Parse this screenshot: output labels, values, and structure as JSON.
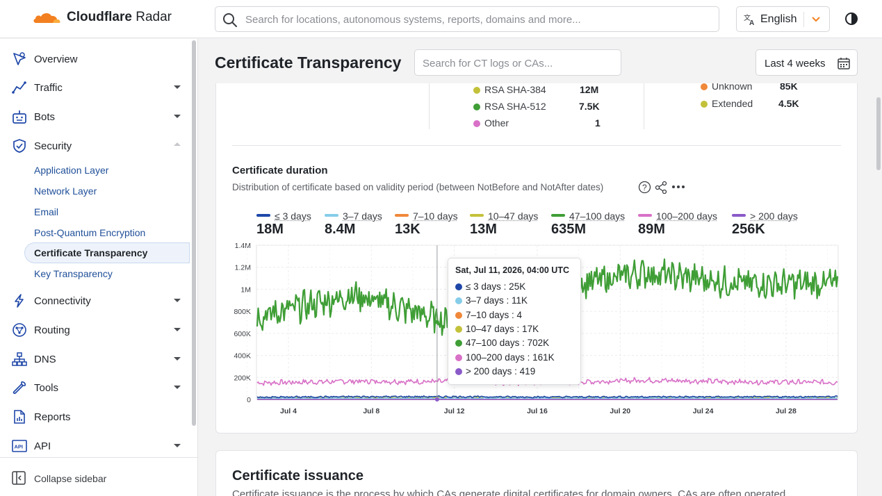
{
  "header": {
    "logo_bold": "Cloudflare",
    "logo_light": "Radar",
    "search_placeholder": "Search for locations, autonomous systems, reports, domains and more...",
    "language": "English"
  },
  "sidebar": {
    "items": [
      {
        "label": "Overview",
        "icon": "overview-icon"
      },
      {
        "label": "Traffic",
        "icon": "traffic-icon"
      },
      {
        "label": "Bots",
        "icon": "bot-icon"
      },
      {
        "label": "Security",
        "icon": "shield-icon"
      },
      {
        "label": "Connectivity",
        "icon": "lightning-icon"
      },
      {
        "label": "Routing",
        "icon": "routing-icon"
      },
      {
        "label": "DNS",
        "icon": "dns-icon"
      },
      {
        "label": "Tools",
        "icon": "wrench-icon"
      },
      {
        "label": "Reports",
        "icon": "report-icon"
      },
      {
        "label": "API",
        "icon": "api-icon"
      }
    ],
    "security_sub": [
      "Application Layer",
      "Network Layer",
      "Email",
      "Post-Quantum Encryption",
      "Certificate Transparency",
      "Key Transparency"
    ],
    "active_sub": "Certificate Transparency",
    "collapse_label": "Collapse sidebar"
  },
  "main": {
    "page_title": "Certificate Transparency",
    "ct_search_placeholder": "Search for CT logs or CAs...",
    "date_range": "Last 4 weeks",
    "signature_legend": [
      {
        "name": "RSA SHA-384",
        "value": "12M",
        "color": "#c3c13a"
      },
      {
        "name": "RSA SHA-512",
        "value": "7.5K",
        "color": "#3f9e36"
      },
      {
        "name": "Other",
        "value": "1",
        "color": "#d871c7"
      }
    ],
    "validation_legend": [
      {
        "name": "Unknown",
        "value": "85K",
        "color": "#f0883a"
      },
      {
        "name": "Extended",
        "value": "4.5K",
        "color": "#c3c13a"
      }
    ],
    "duration_title": "Certificate duration",
    "duration_desc": "Distribution of certificate based on validity period (between NotBefore and NotAfter dates)",
    "issuance_title": "Certificate issuance",
    "issuance_desc": "Certificate issuance is the process by which CAs generate digital certificates for domain owners. CAs are often operated"
  },
  "chart_data": {
    "type": "line",
    "y_tick_labels": [
      "0",
      "200K",
      "400K",
      "600K",
      "800K",
      "1M",
      "1.2M",
      "1.4M"
    ],
    "ylim": [
      0,
      1400000
    ],
    "x_tick_labels": [
      "Jul 4",
      "Jul 8",
      "Jul 12",
      "Jul 16",
      "Jul 20",
      "Jul 24",
      "Jul 28"
    ],
    "x": [
      "Jul 4",
      "Jul 8",
      "Jul 12",
      "Jul 16",
      "Jul 20",
      "Jul 24",
      "Jul 28"
    ],
    "grid": true,
    "series": [
      {
        "name": "≤ 3 days",
        "total": "18M",
        "color": "#1e47a8",
        "values": [
          20000,
          25000,
          25000,
          22000,
          24000,
          23000,
          25000
        ]
      },
      {
        "name": "3–7 days",
        "total": "8.4M",
        "color": "#86cde9",
        "values": [
          11000,
          11000,
          11000,
          11000,
          12000,
          11000,
          11000
        ]
      },
      {
        "name": "7–10 days",
        "total": "13K",
        "color": "#f0883a",
        "values": [
          5,
          4,
          4,
          6,
          4,
          5,
          4
        ]
      },
      {
        "name": "10–47 days",
        "total": "13M",
        "color": "#c3c13a",
        "values": [
          18000,
          17000,
          17000,
          18000,
          17000,
          18000,
          17000
        ]
      },
      {
        "name": "47–100 days",
        "total": "635M",
        "color": "#3f9e36",
        "values": [
          750000,
          950000,
          700000,
          1000000,
          1150000,
          1050000,
          1050000
        ]
      },
      {
        "name": "100–200 days",
        "total": "89M",
        "color": "#d871c7",
        "values": [
          150000,
          165000,
          161000,
          150000,
          175000,
          160000,
          155000
        ]
      },
      {
        "name": "> 200 days",
        "total": "256K",
        "color": "#8a5ac8",
        "values": [
          500,
          450,
          419,
          400,
          450,
          420,
          400
        ]
      }
    ],
    "tooltip": {
      "title": "Sat, Jul 11, 2026, 04:00 UTC",
      "rows": [
        {
          "name": "≤ 3 days",
          "value": "25K",
          "color": "#1e47a8"
        },
        {
          "name": "3–7 days",
          "value": "11K",
          "color": "#86cde9"
        },
        {
          "name": "7–10 days",
          "value": "4",
          "color": "#f0883a"
        },
        {
          "name": "10–47 days",
          "value": "17K",
          "color": "#c3c13a"
        },
        {
          "name": "47–100 days",
          "value": "702K",
          "color": "#3f9e36"
        },
        {
          "name": "100–200 days",
          "value": "161K",
          "color": "#d871c7"
        },
        {
          "name": "> 200 days",
          "value": "419",
          "color": "#8a5ac8"
        }
      ]
    }
  }
}
